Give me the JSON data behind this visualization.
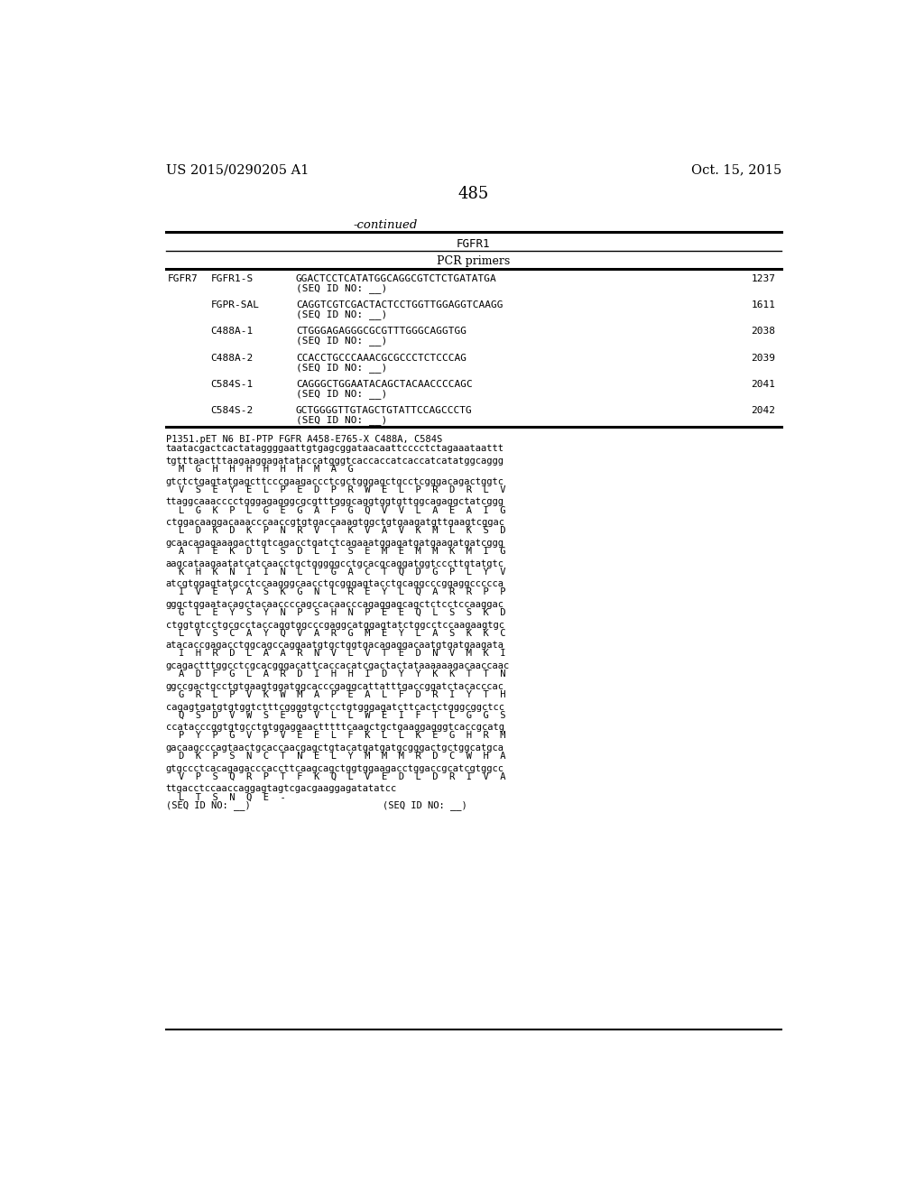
{
  "patent_number": "US 2015/0290205 A1",
  "date": "Oct. 15, 2015",
  "page_number": "485",
  "continued_label": "-continued",
  "table_title": "FGFR1",
  "table_subtitle": "PCR primers",
  "table_rows": [
    {
      "col1": "FGFR7",
      "col2": "FGFR1-S",
      "col3": "GGACTCCTCATATGGCAGGCGTCTCTGATATGA",
      "col3b": "(SEQ ID NO: __)",
      "col4": "1237"
    },
    {
      "col1": "",
      "col2": "FGPR-SAL",
      "col3": "CAGGTCGTCGACTACTCCTGGTTGGAGGTCAAGG",
      "col3b": "(SEQ ID NO: __)",
      "col4": "1611"
    },
    {
      "col1": "",
      "col2": "C488A-1",
      "col3": "CTGGGAGAGGGCGCGTTTGGGCAGGTGG",
      "col3b": "(SEQ ID NO: __)",
      "col4": "2038"
    },
    {
      "col1": "",
      "col2": "C488A-2",
      "col3": "CCACCTGCCCAAACGCGCCCTCTCCCAG",
      "col3b": "(SEQ ID NO: __)",
      "col4": "2039"
    },
    {
      "col1": "",
      "col2": "C584S-1",
      "col3": "CAGGGCTGGAATACAGCTACAACCCCAGC",
      "col3b": "(SEQ ID NO: __)",
      "col4": "2041"
    },
    {
      "col1": "",
      "col2": "C584S-2",
      "col3": "GCTGGGGTTGTAGCTGTATTCCAGCCCTG",
      "col3b": "(SEQ ID NO: __)",
      "col4": "2042"
    }
  ],
  "seq_header": "P1351.pET N6 BI-PTP FGFR A458-E765-X C488A, C584S",
  "sequence_lines": [
    {
      "dna": "taatacgactcactataggggaattgtgagcggataacaattcccctctagaaataattt",
      "aa": ""
    },
    {
      "dna": "tgtttaactttaagaaggagatataccatgggtcaccaccatcaccatcatatggcaggg",
      "aa": "M  G  H  H  H  H  H  H  M  A  G"
    },
    {
      "dna": "gtctctgagtatgagcttcccgaagaccctcgctgggagctgcctcgggacagactggtc",
      "aa": "V  S  E  Y  E  L  P  E  D  P  R  W  E  L  P  R  D  R  L  V"
    },
    {
      "dna": "ttaggcaaacccctgggagagggcgcgtttgggcaggtggtgttggcagaggctatcggg",
      "aa": "L  G  K  P  L  G  E  G  A  F  G  Q  V  V  L  A  E  A  I  G"
    },
    {
      "dna": "ctggacaaggacaaacccaaccgtgtgaccaaagtggctgtgaagatgttgaagtcggac",
      "aa": "L  D  K  D  K  P  N  R  V  T  K  V  A  V  K  M  L  K  S  D"
    },
    {
      "dna": "gcaacagagaaagacttgtcagacctgatctcagaaatggagatgatgaagatgatcggg",
      "aa": "A  T  E  K  D  L  S  D  L  I  S  E  M  E  M  M  K  M  I  G"
    },
    {
      "dna": "aagcataagaatatcatcaacctgctgggggcctgcacgcaggatggtcccttgtatgtc",
      "aa": "K  H  K  N  I  I  N  L  L  G  A  C  T  Q  D  G  P  L  Y  V"
    },
    {
      "dna": "atcgtggagtatgcctccaagggcaacctgcgggagtacctgcaggcccggaggccccca",
      "aa": "I  V  E  Y  A  S  K  G  N  L  R  E  Y  L  Q  A  R  R  P  P"
    },
    {
      "dna": "gggctggaatacagctacaaccccagccacaacccagaggagcagctctcctccaaggac",
      "aa": "G  L  E  Y  S  Y  N  P  S  H  N  P  E  E  Q  L  S  S  K  D"
    },
    {
      "dna": "ctggtgtcctgcgcctaccaggtggcccgaggcatggagtatctggcctccaagaagtgc",
      "aa": "L  V  S  C  A  Y  Q  V  A  R  G  M  E  Y  L  A  S  K  K  C"
    },
    {
      "dna": "atacaccgagacctggcagccaggaatgtgctggtgacagaggacaatgtgatgaagata",
      "aa": "I  H  R  D  L  A  A  R  N  V  L  V  T  E  D  N  V  M  K  I"
    },
    {
      "dna": "gcagactttggcctcgcacgggacattcaccacatcgactactataaaaaagacaaccaac",
      "aa": "A  D  F  G  L  A  R  D  I  H  H  I  D  Y  Y  K  K  T  T  N"
    },
    {
      "dna": "ggccgactgcctgtgaagtggatggcacccgaggcattatttgaccggatctacacccac",
      "aa": "G  R  L  P  V  K  W  M  A  P  E  A  L  F  D  R  I  Y  T  H"
    },
    {
      "dna": "cagagtgatgtgtggtctttcggggtgctcctgtgggagatcttcactctgggcggctcc",
      "aa": "Q  S  D  V  W  S  E  G  V  L  L  W  E  I  F  T  L  G  G  S"
    },
    {
      "dna": "ccatacccggtgtgcctgtggaggaactttttcaagctgctgaaggagggtcaccgcatg",
      "aa": "P  Y  P  G  V  P  V  E  E  L  F  K  L  L  K  E  G  H  R  M"
    },
    {
      "dna": "gacaagcccagtaactgcaccaacgagctgtacatgatgatgcgggactgctggcatgca",
      "aa": "D  K  P  S  N  C  T  N  E  L  Y  M  M  M  R  D  C  W  H  A"
    },
    {
      "dna": "gtgccctcacagagacccaccttcaagcagctggtggaagacctggaccgcatcgtggcc",
      "aa": "V  P  S  Q  R  P  T  F  K  Q  L  V  E  D  L  D  R  I  V  A"
    },
    {
      "dna": "ttgacctccaaccaggagtagtcgacgaaggagatatatcc",
      "aa": "L  T  S  N  Q  E  -",
      "last": true
    }
  ]
}
